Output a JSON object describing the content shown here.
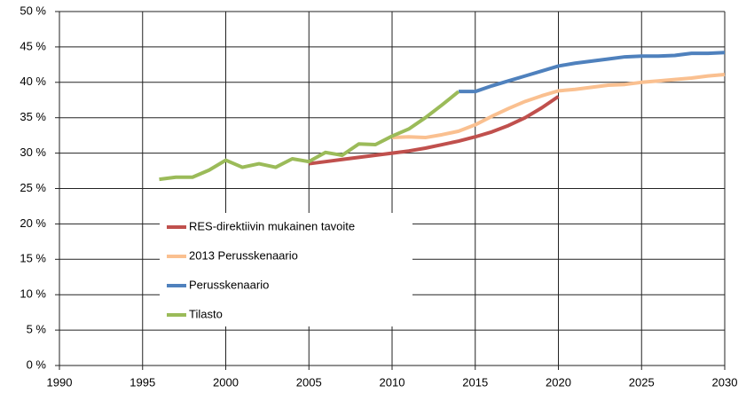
{
  "chart_data": {
    "type": "line",
    "xlim": [
      1990,
      2030
    ],
    "xticks": [
      1990,
      1995,
      2000,
      2005,
      2010,
      2015,
      2020,
      2025,
      2030
    ],
    "ylim": [
      0,
      50
    ],
    "yticks": [
      {
        "value": 0,
        "label": "0 %"
      },
      {
        "value": 5,
        "label": "5 %"
      },
      {
        "value": 10,
        "label": "10 %"
      },
      {
        "value": 15,
        "label": "15 %"
      },
      {
        "value": 20,
        "label": "20 %"
      },
      {
        "value": 25,
        "label": "25 %"
      },
      {
        "value": 30,
        "label": "30 %"
      },
      {
        "value": 35,
        "label": "35 %"
      },
      {
        "value": 40,
        "label": "40 %"
      },
      {
        "value": 45,
        "label": "45 %"
      },
      {
        "value": 50,
        "label": "50 %"
      }
    ],
    "grid": true,
    "legend": "left",
    "series": [
      {
        "name": "RES-direktiivin mukainen tavoite",
        "color": "#c0504d",
        "x": [
          2005,
          2006,
          2007,
          2008,
          2009,
          2010,
          2011,
          2012,
          2013,
          2014,
          2015,
          2016,
          2017,
          2018,
          2019,
          2020
        ],
        "values": [
          28.5,
          28.8,
          29.1,
          29.4,
          29.7,
          30.0,
          30.3,
          30.7,
          31.2,
          31.7,
          32.3,
          33.0,
          33.9,
          35.0,
          36.4,
          38.0
        ]
      },
      {
        "name": "2013 Perusskenaario",
        "color": "#fac090",
        "x": [
          2010,
          2011,
          2012,
          2013,
          2014,
          2015,
          2016,
          2017,
          2018,
          2019,
          2020,
          2021,
          2022,
          2023,
          2024,
          2025,
          2026,
          2027,
          2028,
          2029,
          2030
        ],
        "values": [
          32.2,
          32.3,
          32.2,
          32.6,
          33.1,
          34.0,
          35.2,
          36.3,
          37.3,
          38.1,
          38.8,
          39.0,
          39.3,
          39.6,
          39.7,
          40.0,
          40.2,
          40.4,
          40.6,
          40.9,
          41.1
        ]
      },
      {
        "name": "Perusskenaario",
        "color": "#4f81bd",
        "x": [
          2014,
          2015,
          2016,
          2017,
          2018,
          2019,
          2020,
          2021,
          2022,
          2023,
          2024,
          2025,
          2026,
          2027,
          2028,
          2029,
          2030
        ],
        "values": [
          38.7,
          38.7,
          39.5,
          40.2,
          40.9,
          41.6,
          42.3,
          42.7,
          43.0,
          43.3,
          43.6,
          43.7,
          43.7,
          43.8,
          44.1,
          44.1,
          44.2
        ]
      },
      {
        "name": "Tilasto",
        "color": "#9bbb59",
        "x": [
          1996,
          1997,
          1998,
          1999,
          2000,
          2001,
          2002,
          2003,
          2004,
          2005,
          2006,
          2007,
          2008,
          2009,
          2010,
          2011,
          2012,
          2013,
          2014
        ],
        "values": [
          26.3,
          26.6,
          26.6,
          27.6,
          29.0,
          28.0,
          28.5,
          28.0,
          29.2,
          28.8,
          30.1,
          29.7,
          31.3,
          31.2,
          32.4,
          33.4,
          35.0,
          36.8,
          38.7
        ]
      }
    ]
  }
}
